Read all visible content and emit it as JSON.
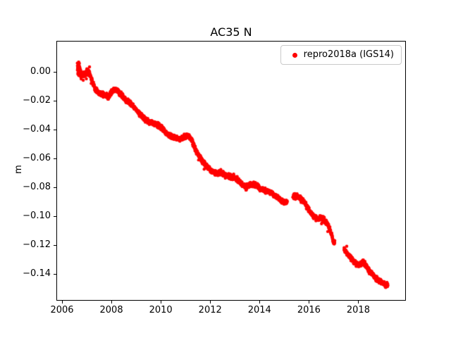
{
  "chart_data": {
    "type": "scatter",
    "title": "AC35 N",
    "xlabel": "",
    "ylabel": "m",
    "xlim": [
      2005.8,
      2019.9
    ],
    "ylim": [
      -0.158,
      0.021
    ],
    "grid": false,
    "xticks": [
      2006,
      2008,
      2010,
      2012,
      2014,
      2016,
      2018
    ],
    "xtick_labels": [
      "2006",
      "2008",
      "2010",
      "2012",
      "2014",
      "2016",
      "2018"
    ],
    "yticks": [
      0.0,
      -0.02,
      -0.04,
      -0.06,
      -0.08,
      -0.1,
      -0.12,
      -0.14
    ],
    "ytick_labels": [
      "0.00",
      "−0.02",
      "−0.04",
      "−0.06",
      "−0.08",
      "−0.10",
      "−0.12",
      "−0.14"
    ],
    "legend": {
      "position": "upper-right",
      "entries": [
        {
          "label": "repro2018a (IGS14)",
          "color": "#ff0000",
          "marker": "dot"
        }
      ]
    },
    "series": [
      {
        "name": "repro2018a (IGS14)",
        "color": "#ff0000",
        "marker": "dot",
        "marker_radius_px": 2.2,
        "x_range": [
          2006.62,
          2019.2
        ],
        "sample_step_years": 0.004,
        "noise_std_m": 0.0016,
        "gaps": [
          [
            2015.12,
            2015.35
          ],
          [
            2017.05,
            2017.42
          ]
        ],
        "extra_spread": [
          {
            "range": [
              2006.6,
              2006.78
            ],
            "noise": 0.005
          },
          {
            "range": [
              2006.98,
              2007.12
            ],
            "noise": 0.0035
          }
        ],
        "trend_points": [
          [
            2006.62,
            0.004
          ],
          [
            2006.7,
            0.002
          ],
          [
            2006.8,
            -0.002
          ],
          [
            2006.95,
            -0.001
          ],
          [
            2007.05,
            0.001
          ],
          [
            2007.15,
            -0.003
          ],
          [
            2007.25,
            -0.008
          ],
          [
            2007.35,
            -0.012
          ],
          [
            2007.5,
            -0.015
          ],
          [
            2007.7,
            -0.016
          ],
          [
            2007.9,
            -0.017
          ],
          [
            2008.0,
            -0.014
          ],
          [
            2008.1,
            -0.012
          ],
          [
            2008.25,
            -0.013
          ],
          [
            2008.4,
            -0.016
          ],
          [
            2008.55,
            -0.019
          ],
          [
            2008.7,
            -0.021
          ],
          [
            2008.85,
            -0.023
          ],
          [
            2009.0,
            -0.026
          ],
          [
            2009.15,
            -0.029
          ],
          [
            2009.3,
            -0.032
          ],
          [
            2009.45,
            -0.034
          ],
          [
            2009.6,
            -0.035
          ],
          [
            2009.75,
            -0.036
          ],
          [
            2009.9,
            -0.037
          ],
          [
            2010.05,
            -0.039
          ],
          [
            2010.2,
            -0.042
          ],
          [
            2010.35,
            -0.044
          ],
          [
            2010.5,
            -0.045
          ],
          [
            2010.65,
            -0.046
          ],
          [
            2010.8,
            -0.047
          ],
          [
            2010.95,
            -0.045
          ],
          [
            2011.1,
            -0.044
          ],
          [
            2011.25,
            -0.047
          ],
          [
            2011.35,
            -0.052
          ],
          [
            2011.5,
            -0.057
          ],
          [
            2011.65,
            -0.061
          ],
          [
            2011.8,
            -0.064
          ],
          [
            2011.95,
            -0.067
          ],
          [
            2012.1,
            -0.069
          ],
          [
            2012.25,
            -0.07
          ],
          [
            2012.4,
            -0.07
          ],
          [
            2012.55,
            -0.071
          ],
          [
            2012.7,
            -0.072
          ],
          [
            2012.85,
            -0.073
          ],
          [
            2013.0,
            -0.073
          ],
          [
            2013.15,
            -0.075
          ],
          [
            2013.3,
            -0.078
          ],
          [
            2013.45,
            -0.08
          ],
          [
            2013.6,
            -0.078
          ],
          [
            2013.75,
            -0.078
          ],
          [
            2013.9,
            -0.079
          ],
          [
            2014.05,
            -0.081
          ],
          [
            2014.2,
            -0.082
          ],
          [
            2014.35,
            -0.083
          ],
          [
            2014.5,
            -0.084
          ],
          [
            2014.65,
            -0.086
          ],
          [
            2014.8,
            -0.088
          ],
          [
            2014.95,
            -0.09
          ],
          [
            2015.1,
            -0.09
          ],
          [
            2015.4,
            -0.086
          ],
          [
            2015.6,
            -0.087
          ],
          [
            2015.75,
            -0.089
          ],
          [
            2015.9,
            -0.093
          ],
          [
            2016.05,
            -0.097
          ],
          [
            2016.2,
            -0.1
          ],
          [
            2016.35,
            -0.102
          ],
          [
            2016.5,
            -0.101
          ],
          [
            2016.65,
            -0.103
          ],
          [
            2016.8,
            -0.107
          ],
          [
            2016.9,
            -0.112
          ],
          [
            2017.0,
            -0.118
          ],
          [
            2017.42,
            -0.122
          ],
          [
            2017.55,
            -0.126
          ],
          [
            2017.7,
            -0.129
          ],
          [
            2017.85,
            -0.132
          ],
          [
            2018.0,
            -0.134
          ],
          [
            2018.1,
            -0.133
          ],
          [
            2018.2,
            -0.131
          ],
          [
            2018.35,
            -0.136
          ],
          [
            2018.5,
            -0.139
          ],
          [
            2018.65,
            -0.142
          ],
          [
            2018.8,
            -0.144
          ],
          [
            2018.95,
            -0.146
          ],
          [
            2019.05,
            -0.147
          ],
          [
            2019.2,
            -0.148
          ]
        ]
      }
    ]
  }
}
